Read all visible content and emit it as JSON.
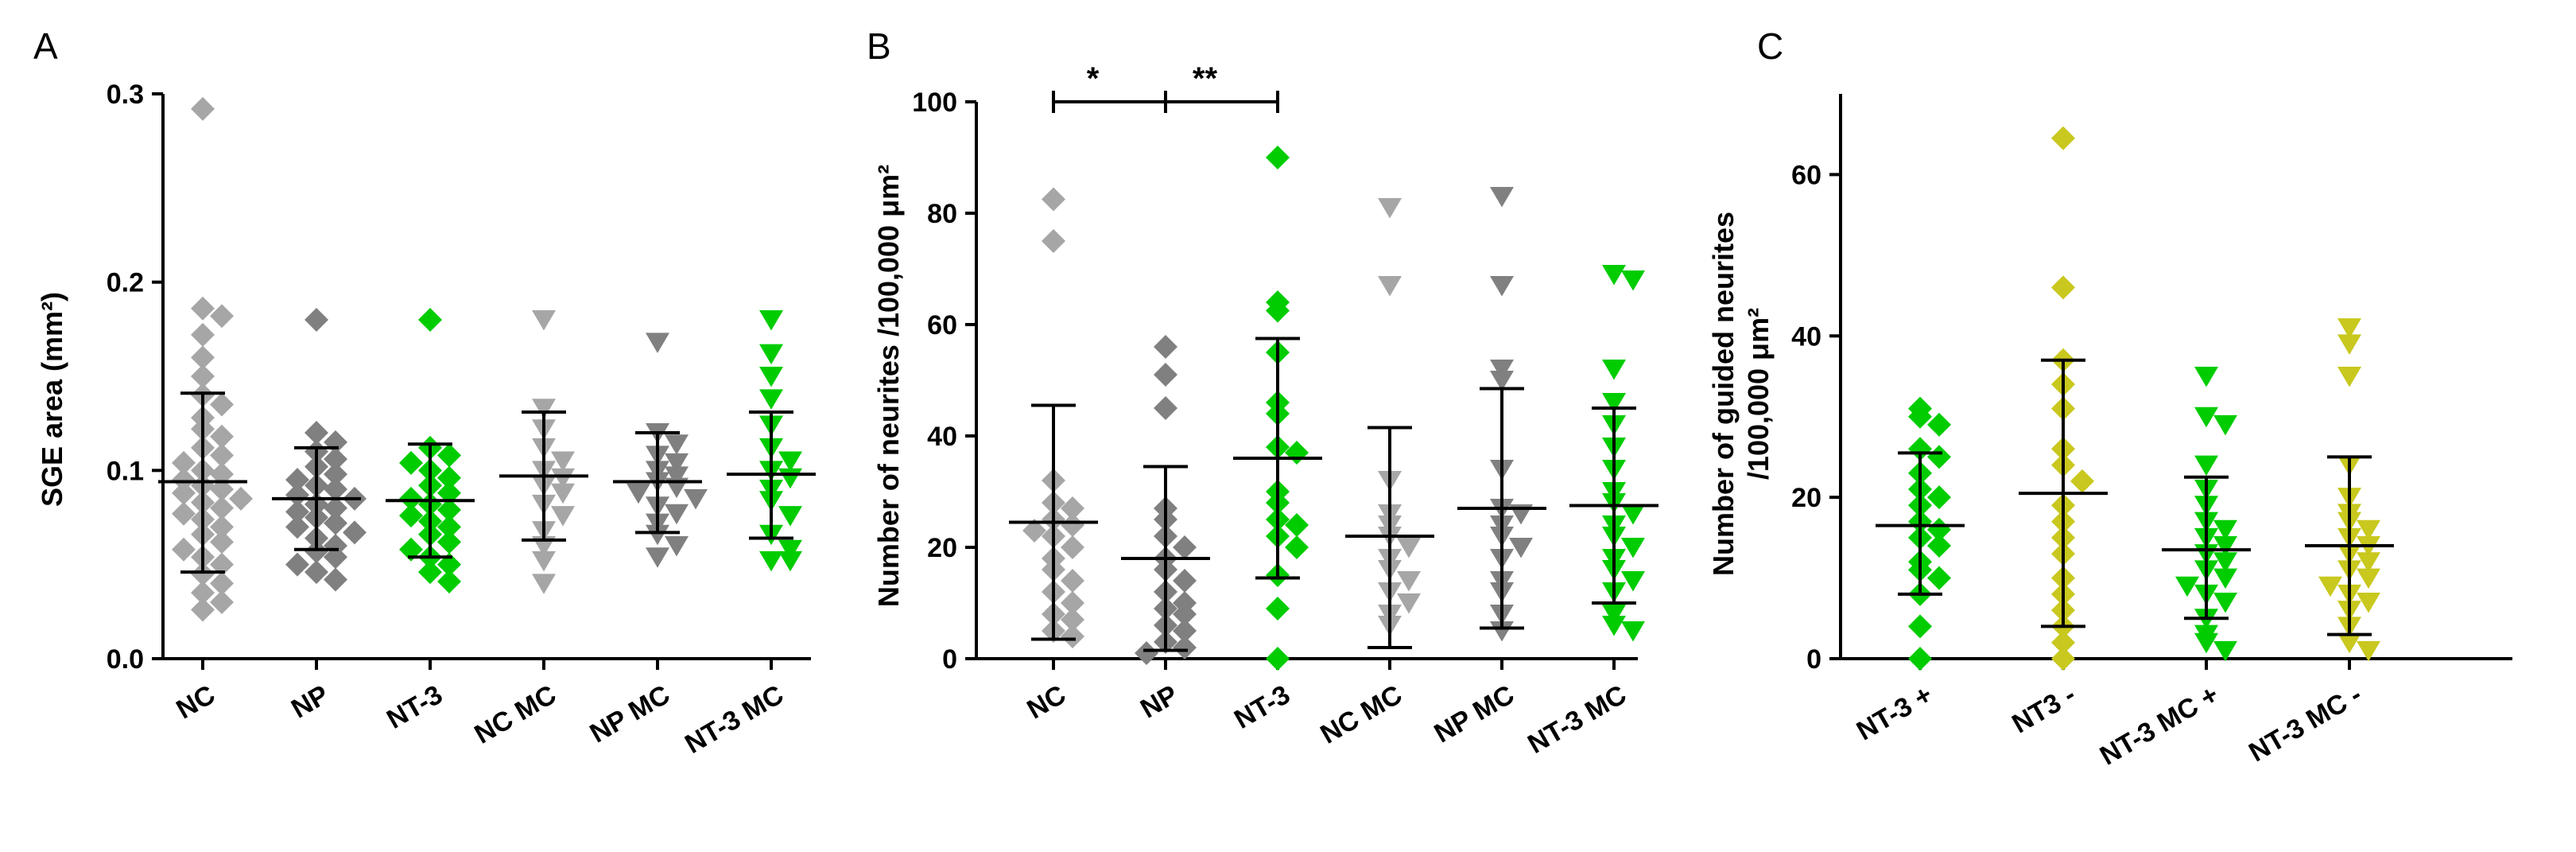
{
  "colors": {
    "gray_light": "#a6a6a6",
    "gray_dark": "#808080",
    "green": "#00cc00",
    "olive": "#c8c81e",
    "black": "#000000"
  },
  "chart_data": [
    {
      "panel": "A",
      "type": "scatter",
      "ylabel": "SGE area (mm²)",
      "ylim": [
        0,
        0.3
      ],
      "yticks": [
        "0.0",
        "0.1",
        "0.2",
        "0.3"
      ],
      "categories": [
        "NC",
        "NP",
        "NT-3",
        "NC MC",
        "NP MC",
        "NT-3 MC"
      ],
      "groups": [
        {
          "name": "NC",
          "marker": "diamond",
          "color": "#a6a6a6",
          "mean": 0.094,
          "err_low": 0.046,
          "err_high": 0.141,
          "values": [
            0.292,
            0.186,
            0.182,
            0.172,
            0.16,
            0.15,
            0.14,
            0.135,
            0.128,
            0.122,
            0.118,
            0.112,
            0.108,
            0.104,
            0.1,
            0.098,
            0.095,
            0.092,
            0.09,
            0.088,
            0.085,
            0.083,
            0.08,
            0.077,
            0.074,
            0.07,
            0.066,
            0.062,
            0.058,
            0.054,
            0.05,
            0.045,
            0.04,
            0.035,
            0.03,
            0.026
          ]
        },
        {
          "name": "NP",
          "marker": "diamond",
          "color": "#808080",
          "mean": 0.085,
          "err_low": 0.058,
          "err_high": 0.112,
          "values": [
            0.18,
            0.12,
            0.115,
            0.11,
            0.106,
            0.102,
            0.098,
            0.095,
            0.092,
            0.09,
            0.087,
            0.085,
            0.082,
            0.08,
            0.078,
            0.075,
            0.072,
            0.07,
            0.067,
            0.064,
            0.06,
            0.057,
            0.054,
            0.05,
            0.046,
            0.042
          ]
        },
        {
          "name": "NT-3",
          "marker": "diamond",
          "color": "#00cc00",
          "mean": 0.084,
          "err_low": 0.054,
          "err_high": 0.114,
          "values": [
            0.18,
            0.112,
            0.108,
            0.104,
            0.1,
            0.096,
            0.092,
            0.088,
            0.085,
            0.082,
            0.079,
            0.076,
            0.073,
            0.07,
            0.066,
            0.062,
            0.058,
            0.054,
            0.05,
            0.046,
            0.041
          ]
        },
        {
          "name": "NC MC",
          "marker": "triangle-down",
          "color": "#a6a6a6",
          "mean": 0.097,
          "err_low": 0.063,
          "err_high": 0.131,
          "values": [
            0.18,
            0.133,
            0.122,
            0.112,
            0.105,
            0.1,
            0.096,
            0.092,
            0.088,
            0.082,
            0.076,
            0.068,
            0.06,
            0.052,
            0.04
          ]
        },
        {
          "name": "NP MC",
          "marker": "triangle-down",
          "color": "#808080",
          "mean": 0.094,
          "err_low": 0.067,
          "err_high": 0.12,
          "values": [
            0.168,
            0.12,
            0.114,
            0.108,
            0.104,
            0.1,
            0.097,
            0.094,
            0.091,
            0.088,
            0.085,
            0.081,
            0.077,
            0.072,
            0.066,
            0.06,
            0.054
          ]
        },
        {
          "name": "NT-3 MC",
          "marker": "triangle-down",
          "color": "#00cc00",
          "mean": 0.098,
          "err_low": 0.064,
          "err_high": 0.131,
          "values": [
            0.18,
            0.162,
            0.15,
            0.138,
            0.124,
            0.112,
            0.105,
            0.1,
            0.096,
            0.09,
            0.084,
            0.076,
            0.066,
            0.058,
            0.052,
            0.052
          ]
        }
      ]
    },
    {
      "panel": "B",
      "type": "scatter",
      "ylabel": "Number of neurites /100,000 μm²",
      "ylim": [
        0,
        100
      ],
      "yticks": [
        "0",
        "20",
        "40",
        "60",
        "80",
        "100"
      ],
      "categories": [
        "NC",
        "NP",
        "NT-3",
        "NC MC",
        "NP MC",
        "NT-3 MC"
      ],
      "significance": [
        {
          "label": "*",
          "from": "NC",
          "to": "NP"
        },
        {
          "label": "**",
          "from": "NP",
          "to": "NT-3"
        }
      ],
      "groups": [
        {
          "name": "NC",
          "marker": "diamond",
          "color": "#a6a6a6",
          "mean": 24.5,
          "err_low": 3.5,
          "err_high": 45.5,
          "values": [
            82.5,
            75,
            32,
            28,
            27,
            25,
            24,
            23,
            22,
            20,
            18,
            16,
            14,
            12,
            10,
            8,
            7,
            5,
            4
          ]
        },
        {
          "name": "NP",
          "marker": "diamond",
          "color": "#808080",
          "mean": 18,
          "err_low": 1.5,
          "err_high": 34.5,
          "values": [
            56,
            51,
            45,
            27,
            25,
            22,
            20,
            18,
            16,
            14,
            12,
            10,
            9,
            8,
            6,
            5,
            3,
            2,
            1
          ]
        },
        {
          "name": "NT-3",
          "marker": "diamond",
          "color": "#00cc00",
          "mean": 36,
          "err_low": 14.5,
          "err_high": 57.5,
          "values": [
            90,
            64,
            62.5,
            55,
            46,
            44,
            38,
            37,
            30,
            28,
            25,
            24,
            22,
            20,
            15,
            9,
            0
          ]
        },
        {
          "name": "NC MC",
          "marker": "triangle-down",
          "color": "#a6a6a6",
          "mean": 22,
          "err_low": 2,
          "err_high": 41.5,
          "values": [
            81,
            67,
            32,
            26,
            24,
            22,
            20,
            18,
            16,
            14,
            12,
            10,
            8,
            6
          ]
        },
        {
          "name": "NP MC",
          "marker": "triangle-down",
          "color": "#808080",
          "mean": 27,
          "err_low": 5.5,
          "err_high": 48.5,
          "values": [
            83,
            67,
            52,
            50,
            34,
            27,
            26,
            24,
            22,
            20,
            18,
            14,
            12,
            8,
            5
          ]
        },
        {
          "name": "NT-3 MC",
          "marker": "triangle-down",
          "color": "#00cc00",
          "mean": 27.5,
          "err_low": 10,
          "err_high": 45,
          "values": [
            69,
            68,
            52,
            46,
            42,
            38,
            34,
            30,
            28,
            26,
            24,
            22,
            20,
            18,
            16,
            14,
            12,
            8,
            6,
            5
          ]
        }
      ]
    },
    {
      "panel": "C",
      "type": "scatter",
      "ylabel_line1": "Number of guided neurites",
      "ylabel_line2": "/100,000 μm²",
      "ylim": [
        0,
        70
      ],
      "yticks": [
        "0",
        "20",
        "40",
        "60"
      ],
      "categories": [
        "NT-3 +",
        "NT3 -",
        "NT-3 MC +",
        "NT-3 MC -"
      ],
      "groups": [
        {
          "name": "NT-3 +",
          "marker": "diamond",
          "color": "#00cc00",
          "mean": 16.5,
          "err_low": 8,
          "err_high": 25.5,
          "values": [
            31,
            30,
            29,
            26,
            25,
            23,
            21,
            20,
            19,
            17,
            16,
            15,
            14,
            12,
            11,
            10,
            8,
            4,
            0
          ]
        },
        {
          "name": "NT3 -",
          "marker": "diamond",
          "color": "#c8c81e",
          "mean": 20.5,
          "err_low": 4,
          "err_high": 37,
          "values": [
            64.5,
            46,
            37,
            34,
            31,
            26,
            24,
            22,
            19,
            17,
            15,
            13,
            10,
            8,
            6,
            4,
            2,
            0
          ]
        },
        {
          "name": "NT-3 MC +",
          "marker": "triangle-down",
          "color": "#00cc00",
          "mean": 13.5,
          "err_low": 5,
          "err_high": 22.5,
          "values": [
            35,
            30,
            29,
            24,
            21,
            19,
            17,
            16,
            15,
            14,
            13,
            12,
            11,
            10,
            9,
            8,
            7,
            5,
            3,
            2,
            1
          ]
        },
        {
          "name": "NT-3 MC -",
          "marker": "triangle-down",
          "color": "#c8c81e",
          "mean": 14,
          "err_low": 3,
          "err_high": 25,
          "values": [
            41,
            39,
            35,
            24,
            20,
            18,
            17,
            16,
            15,
            14,
            13,
            12,
            11,
            10,
            9,
            8,
            7,
            6,
            4,
            2,
            1
          ]
        }
      ]
    }
  ]
}
